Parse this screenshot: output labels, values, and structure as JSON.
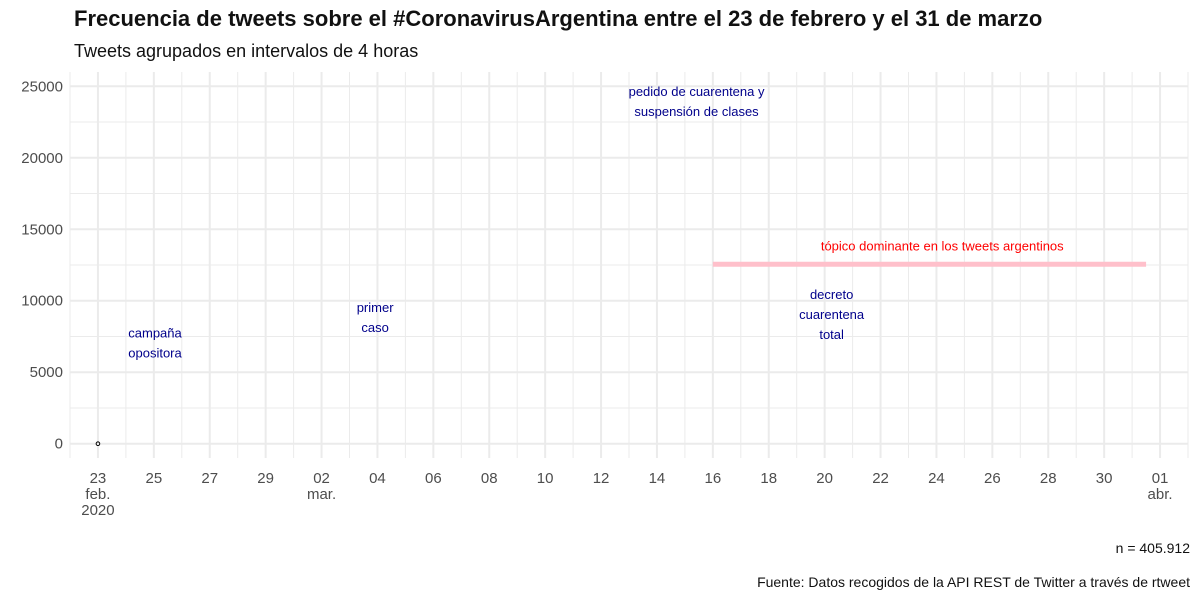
{
  "title": "Frecuencia de tweets sobre el #CoronavirusArgentina entre el 23 de febrero y el 31 de marzo",
  "subtitle": "Tweets agrupados en intervalos de 4 horas",
  "n_label": "n = 405.912",
  "source": "Fuente: Datos recogidos de la API REST de Twitter a través de rtweet",
  "colors": {
    "grid": "#ebebeb",
    "annotation": "#00008b",
    "highlight_text": "#ff0000",
    "highlight_band": "#ffc0cb",
    "point": "#000000"
  },
  "chart_data": {
    "type": "line",
    "title": "Frecuencia de tweets sobre el #CoronavirusArgentina entre el 23 de febrero y el 31 de marzo",
    "subtitle": "Tweets agrupados en intervalos de 4 horas",
    "xlabel": "",
    "ylabel": "",
    "xlim": [
      "2020-02-22",
      "2020-04-02"
    ],
    "ylim": [
      -1000,
      26000
    ],
    "grid": true,
    "x_ticks": [
      {
        "date": "2020-02-23",
        "lines": [
          "23",
          "feb.",
          "2020"
        ]
      },
      {
        "date": "2020-02-25",
        "lines": [
          "25"
        ]
      },
      {
        "date": "2020-02-27",
        "lines": [
          "27"
        ]
      },
      {
        "date": "2020-02-29",
        "lines": [
          "29"
        ]
      },
      {
        "date": "2020-03-02",
        "lines": [
          "02",
          "mar."
        ]
      },
      {
        "date": "2020-03-04",
        "lines": [
          "04"
        ]
      },
      {
        "date": "2020-03-06",
        "lines": [
          "06"
        ]
      },
      {
        "date": "2020-03-08",
        "lines": [
          "08"
        ]
      },
      {
        "date": "2020-03-10",
        "lines": [
          "10"
        ]
      },
      {
        "date": "2020-03-12",
        "lines": [
          "12"
        ]
      },
      {
        "date": "2020-03-14",
        "lines": [
          "14"
        ]
      },
      {
        "date": "2020-03-16",
        "lines": [
          "16"
        ]
      },
      {
        "date": "2020-03-18",
        "lines": [
          "18"
        ]
      },
      {
        "date": "2020-03-20",
        "lines": [
          "20"
        ]
      },
      {
        "date": "2020-03-22",
        "lines": [
          "22"
        ]
      },
      {
        "date": "2020-03-24",
        "lines": [
          "24"
        ]
      },
      {
        "date": "2020-03-26",
        "lines": [
          "26"
        ]
      },
      {
        "date": "2020-03-28",
        "lines": [
          "28"
        ]
      },
      {
        "date": "2020-03-30",
        "lines": [
          "30"
        ]
      },
      {
        "date": "2020-04-01",
        "lines": [
          "01",
          "abr."
        ]
      }
    ],
    "y_ticks": [
      0,
      5000,
      10000,
      15000,
      20000,
      25000
    ],
    "y_tick_labels": [
      "0",
      "5000",
      "10000",
      "15000",
      "20000",
      "25000"
    ],
    "series": [
      {
        "points": [
          {
            "x": "2020-02-23",
            "y": 0
          }
        ]
      }
    ],
    "annotations": [
      {
        "lines": [
          "campaña",
          "opositora"
        ],
        "x": "2020-02-25T01:00",
        "y": 7000,
        "color": "#00008b"
      },
      {
        "lines": [
          "primer",
          "caso"
        ],
        "x": "2020-03-03T22:00",
        "y": 8800,
        "color": "#00008b"
      },
      {
        "lines": [
          "pedido de cuarentena y",
          "suspensión de clases"
        ],
        "x": "2020-03-15T10:00",
        "y": 23900,
        "color": "#00008b"
      },
      {
        "lines": [
          "decreto",
          "cuarentena",
          "total"
        ],
        "x": "2020-03-20T06:00",
        "y": 9000,
        "color": "#00008b"
      },
      {
        "lines": [
          "tópico dominante en los tweets argentinos"
        ],
        "x": "2020-03-24T05:00",
        "y": 13800,
        "color": "#ff0000"
      }
    ],
    "highlight_segment": {
      "x_start": "2020-03-16T00:00",
      "x_end": "2020-03-31T12:00",
      "y": 12550,
      "color": "#ffc0cb"
    }
  }
}
